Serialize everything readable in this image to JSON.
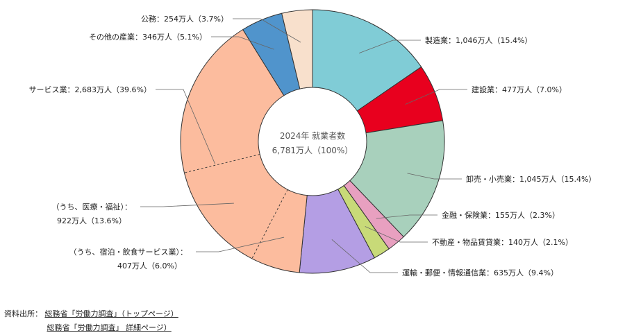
{
  "chart_data": {
    "type": "pie",
    "center": {
      "line1": "2024年 就業者数",
      "line2": "6,781万人（100%）"
    },
    "slices": [
      {
        "label": "製造業：1,046万人（15.4%）",
        "value": 1046,
        "color": "#80ccd6"
      },
      {
        "label": "建設業：477万人（7.0%）",
        "value": 477,
        "color": "#e8001e"
      },
      {
        "label": "卸売・小売業：1,045万人（15.4%）",
        "value": 1045,
        "color": "#a8d0bc"
      },
      {
        "label": "金融・保険業：155万人（2.3%）",
        "value": 155,
        "color": "#e8a0c0"
      },
      {
        "label": "不動産・物品賃貸業：140万人（2.1%）",
        "value": 140,
        "color": "#c8da78"
      },
      {
        "label": "運輸・郵便・情報通信業：635万人（9.4%）",
        "value": 635,
        "color": "#b49ee4"
      },
      {
        "label": "サービス業：2,683万人（39.6%）",
        "value": 2683,
        "color": "#fcbc9e"
      },
      {
        "label": "その他の産業：346万人（5.1%）",
        "value": 346,
        "color": "#5094cc"
      },
      {
        "label": "公務：254万人（3.7%）",
        "value": 254,
        "color": "#f8e0cc"
      }
    ],
    "sub_annotations": [
      {
        "line1": "（うち、医療・福祉）：",
        "line2": "922万人（13.6%）",
        "value": 922
      },
      {
        "line1": "（うち、宿泊・飲食サービス業）：",
        "line2": "407万人（6.0%）",
        "value": 407
      }
    ]
  },
  "source": {
    "prefix": "資料出所：",
    "links": [
      "総務省「労働力調査」（トップページ）",
      "総務省「労働力調査」 詳細ページ）"
    ]
  }
}
